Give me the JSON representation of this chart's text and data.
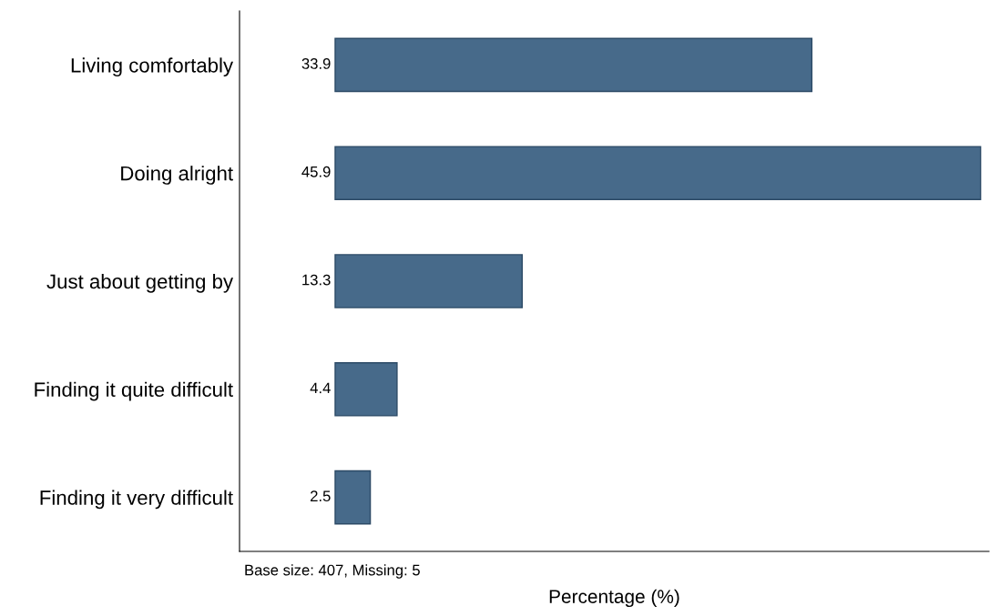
{
  "chart_data": {
    "type": "bar",
    "orientation": "horizontal",
    "xlabel": "Percentage (%)",
    "categories": [
      "Living comfortably",
      "Doing alright",
      "Just about getting by",
      "Finding it quite difficult",
      "Finding it very difficult"
    ],
    "values": [
      33.9,
      45.9,
      13.3,
      4.4,
      2.5
    ],
    "color": "#476a8a",
    "xlim": [
      -6.8,
      46.5
    ],
    "data_labels": true,
    "tick_labels": "y",
    "grid": false,
    "legend": false,
    "annotations": [
      "Base size: 407, Missing: 5"
    ]
  }
}
